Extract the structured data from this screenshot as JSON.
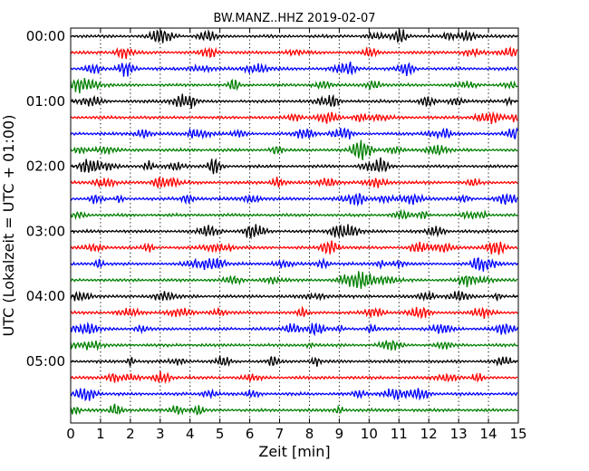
{
  "chart_data": {
    "type": "line",
    "subtype": "seismogram-dayplot",
    "title": "BW.MANZ..HHZ 2019-02-07",
    "xlabel": "Zeit  [min]",
    "ylabel": "UTC (Lokalzeit = UTC + 01:00)",
    "xlim": [
      0,
      15
    ],
    "x_ticks": [
      0,
      1,
      2,
      3,
      4,
      5,
      6,
      7,
      8,
      9,
      10,
      11,
      12,
      13,
      14,
      15
    ],
    "x_tick_labels": [
      "0",
      "1",
      "2",
      "3",
      "4",
      "5",
      "6",
      "7",
      "8",
      "9",
      "10",
      "11",
      "12",
      "13",
      "14",
      "15"
    ],
    "y_tick_labels": [
      "00:00",
      "01:00",
      "02:00",
      "03:00",
      "04:00",
      "05:00"
    ],
    "minutes_per_row": 15,
    "row_count": 24,
    "row_colors": [
      "#000000",
      "#ff0000",
      "#0000ff",
      "#008000"
    ],
    "vertical_grid": true,
    "grid_style": "dotted"
  }
}
